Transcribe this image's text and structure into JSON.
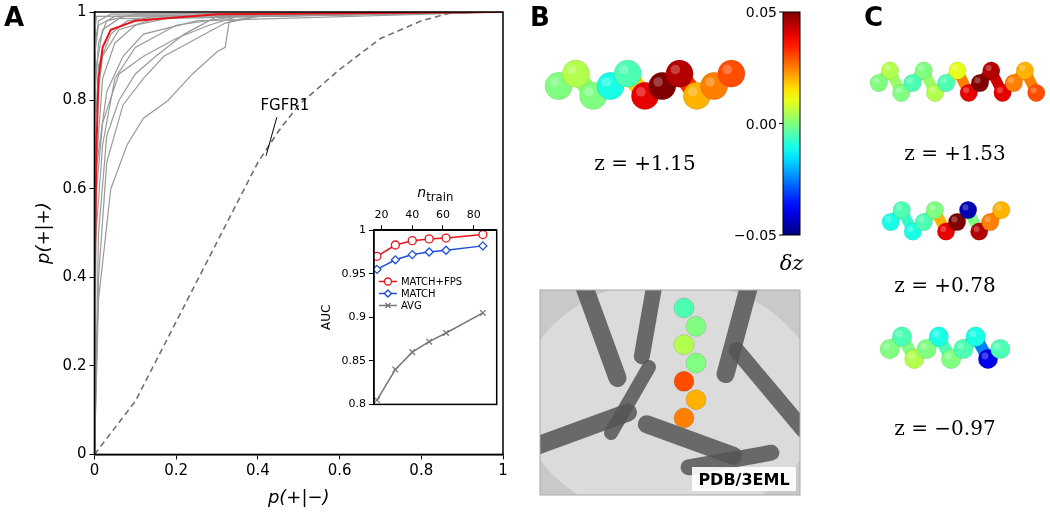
{
  "chart_data": [
    {
      "type": "line",
      "xlabel": "p(+|−)",
      "ylabel": "p(+|+)",
      "xlim": [
        0,
        1
      ],
      "ylim": [
        0,
        1
      ],
      "xticks": [
        0,
        0.2,
        0.4,
        0.6,
        0.8,
        1
      ],
      "yticks": [
        0,
        0.2,
        0.4,
        0.6,
        0.8,
        1
      ],
      "grid": false,
      "series": [
        {
          "color": "#9a9a9a",
          "x": [
            0,
            0,
            0.01,
            0.05,
            1
          ],
          "values": [
            0,
            0.9,
            0.97,
            0.99,
            1
          ]
        },
        {
          "color": "#9a9a9a",
          "x": [
            0,
            0,
            0.01,
            0.03,
            0.1,
            1
          ],
          "values": [
            0,
            0.8,
            0.93,
            0.98,
            0.995,
            1
          ]
        },
        {
          "color": "#9a9a9a",
          "x": [
            0,
            0,
            0.02,
            0.05,
            0.1,
            0.2,
            1
          ],
          "values": [
            0,
            0.6,
            0.85,
            0.93,
            0.97,
            0.99,
            1
          ]
        },
        {
          "color": "#9a9a9a",
          "x": [
            0,
            0,
            0.02,
            0.05,
            0.1,
            0.2,
            0.35,
            1
          ],
          "values": [
            0,
            0.45,
            0.7,
            0.85,
            0.92,
            0.97,
            0.99,
            1
          ]
        },
        {
          "color": "#9a9a9a",
          "x": [
            0,
            0.01,
            0.03,
            0.06,
            0.1,
            0.15,
            0.22,
            0.3,
            1
          ],
          "values": [
            0,
            0.5,
            0.72,
            0.8,
            0.86,
            0.9,
            0.95,
            0.99,
            1
          ]
        },
        {
          "color": "#9a9a9a",
          "x": [
            0,
            0.01,
            0.04,
            0.08,
            0.12,
            0.18,
            0.24,
            0.3,
            0.32,
            0.33,
            0.4,
            1
          ],
          "values": [
            0,
            0.35,
            0.6,
            0.7,
            0.76,
            0.8,
            0.86,
            0.91,
            0.92,
            0.98,
            0.99,
            1
          ]
        },
        {
          "color": "#9a9a9a",
          "x": [
            0,
            0,
            0.02,
            0.06,
            0.12,
            0.2,
            0.28,
            0.35,
            1
          ],
          "values": [
            0,
            0.55,
            0.75,
            0.86,
            0.9,
            0.94,
            0.97,
            0.99,
            1
          ]
        },
        {
          "color": "#9a9a9a",
          "x": [
            0,
            0,
            0.01,
            0.04,
            0.08,
            0.15,
            1
          ],
          "values": [
            0,
            0.7,
            0.88,
            0.95,
            0.98,
            0.99,
            1
          ]
        },
        {
          "color": "#9a9a9a",
          "x": [
            0,
            0,
            0.02,
            0.06,
            1
          ],
          "values": [
            0,
            0.85,
            0.96,
            0.985,
            1
          ]
        },
        {
          "color": "#9a9a9a",
          "x": [
            0,
            0.005,
            0.03,
            0.07,
            0.12,
            0.25,
            1
          ],
          "values": [
            0,
            0.65,
            0.82,
            0.9,
            0.95,
            0.98,
            1
          ]
        },
        {
          "color": "#9a9a9a",
          "x": [
            0,
            0,
            0.02,
            0.06,
            0.15,
            1
          ],
          "values": [
            0,
            0.75,
            0.9,
            0.96,
            0.985,
            1
          ]
        },
        {
          "color": "#9a9a9a",
          "x": [
            0,
            0.01,
            0.03,
            0.07,
            0.12,
            0.17,
            0.25,
            0.32,
            0.4,
            1
          ],
          "values": [
            0,
            0.4,
            0.66,
            0.79,
            0.85,
            0.9,
            0.94,
            0.975,
            0.99,
            1
          ]
        },
        {
          "color": "#9a9a9a",
          "x": [
            0,
            0,
            0.01,
            0.04,
            1
          ],
          "values": [
            0,
            0.92,
            0.98,
            0.995,
            1
          ]
        },
        {
          "color": "#9a9a9a",
          "x": [
            0,
            0,
            0.005,
            1
          ],
          "values": [
            0,
            0.95,
            0.99,
            1
          ]
        },
        {
          "color": "#707070",
          "line_style": "dashed",
          "x": [
            0,
            0.1,
            0.2,
            0.3,
            0.4,
            0.45,
            0.5,
            0.6,
            0.7,
            0.8,
            0.88,
            1
          ],
          "values": [
            0,
            0.12,
            0.3,
            0.48,
            0.66,
            0.73,
            0.79,
            0.87,
            0.94,
            0.98,
            1,
            1
          ]
        },
        {
          "color": "#e8141c",
          "x": [
            0,
            0,
            0.005,
            0.01,
            0.02,
            0.04,
            0.1,
            0.3,
            1
          ],
          "values": [
            0,
            0.35,
            0.7,
            0.85,
            0.92,
            0.96,
            0.98,
            0.995,
            1
          ]
        }
      ],
      "annotations": [
        {
          "text": "FGFR1",
          "x": 0.466,
          "y": 0.787,
          "arrow_x": 0.42,
          "arrow_y": 0.675
        }
      ]
    },
    {
      "type": "line",
      "xlabel": "n",
      "xlabel_subscript": "train",
      "ylabel": "AUC",
      "xlim": [
        15,
        95
      ],
      "ylim": [
        0.8,
        1
      ],
      "xticks": [
        20,
        40,
        60,
        80
      ],
      "yticks": [
        0.8,
        0.85,
        0.9,
        0.95,
        1
      ],
      "grid": false,
      "legend": "left",
      "x": [
        17,
        29,
        40,
        51,
        62,
        86
      ],
      "series": [
        {
          "name": "MATCH+FPS",
          "color": "#e8141c",
          "marker": "circle",
          "values": [
            0.97,
            0.983,
            0.988,
            0.99,
            0.991,
            0.995
          ]
        },
        {
          "name": "MATCH",
          "color": "#1f4fd8",
          "marker": "diamond",
          "values": [
            0.955,
            0.966,
            0.972,
            0.975,
            0.977,
            0.982
          ]
        },
        {
          "name": "AVG",
          "color": "#777777",
          "marker": "cross",
          "values": [
            0.805,
            0.84,
            0.86,
            0.872,
            0.882,
            0.905
          ]
        }
      ]
    }
  ],
  "panel_labels": [
    "A",
    "B",
    "C"
  ],
  "colorbar": {
    "label": "δz",
    "range": [
      -0.05,
      0.05
    ],
    "ticks": [
      0.05,
      {
        "value": 0,
        "label": "0.00"
      },
      {
        "value": -0.05,
        "label": "−0.05"
      }
    ]
  },
  "structure_label": "PDB/3EML",
  "ligand_dz": [
    -0.005,
    0.0,
    0.005,
    0.0,
    0.03,
    0.02,
    0.025
  ],
  "molecules": [
    {
      "panel": "B",
      "label": "z = +1.15",
      "dz": [
        0.0,
        0.005,
        0.0,
        -0.01,
        -0.005,
        0.04,
        0.05,
        0.045,
        0.02,
        0.025,
        0.03
      ]
    },
    {
      "panel": "C",
      "label": "z = +1.53",
      "dz": [
        0.0,
        0.005,
        0.0,
        -0.005,
        0.0,
        0.005,
        -0.005,
        0.01,
        0.04,
        0.05,
        0.045,
        0.04,
        0.025,
        0.02,
        0.03
      ]
    },
    {
      "panel": "C",
      "label": "z = +0.78",
      "dz": [
        -0.01,
        -0.005,
        -0.01,
        -0.005,
        0.0,
        0.04,
        0.05,
        -0.045,
        0.045,
        0.025,
        0.02
      ]
    },
    {
      "panel": "C",
      "label": "z = −0.97",
      "dz": [
        0.0,
        -0.005,
        0.005,
        0.0,
        -0.01,
        0.0,
        -0.005,
        -0.01,
        -0.04,
        -0.005
      ]
    }
  ]
}
